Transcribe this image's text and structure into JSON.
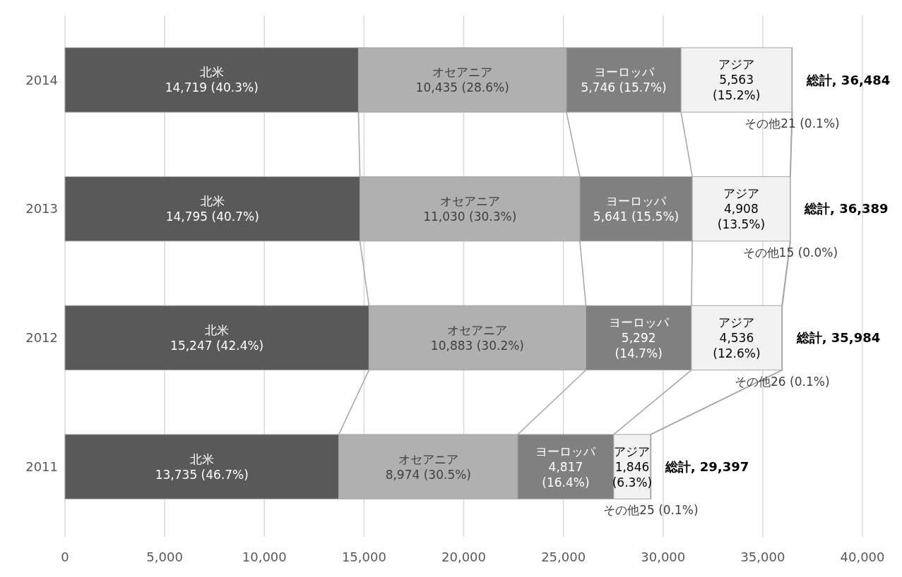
{
  "chart_data": {
    "type": "bar",
    "orientation": "horizontal",
    "stacked": true,
    "categories": [
      "2014",
      "2013",
      "2012",
      "2011"
    ],
    "series": [
      {
        "name": "北米",
        "color": "#595959",
        "values": [
          14719,
          14795,
          15247,
          13735
        ],
        "value_labels": [
          "14,719 (40.3%)",
          "14,795 (40.7%)",
          "15,247 (42.4%)",
          "13,735 (46.7%)"
        ]
      },
      {
        "name": "オセアニア",
        "color": "#b0b0b0",
        "values": [
          10435,
          11030,
          10883,
          8974
        ],
        "value_labels": [
          "10,435 (28.6%)",
          "11,030 (30.3%)",
          "10,883 (30.2%)",
          "8,974 (30.5%)"
        ]
      },
      {
        "name": "ヨーロッパ",
        "color": "#808080",
        "values": [
          5746,
          5641,
          5292,
          4817
        ],
        "value_labels": [
          "5,746 (15.7%)",
          "5,641 (15.5%)",
          "5,292 (14.7%)",
          "4,817 (16.4%)"
        ]
      },
      {
        "name": "アジア",
        "color": "#f2f2f2",
        "values": [
          5563,
          4908,
          4536,
          1846
        ],
        "value_labels": [
          "5,563 (15.2%)",
          "4,908 (13.5%)",
          "4,536 (12.6%)",
          "1,846 (6.3%)"
        ]
      },
      {
        "name": "その他",
        "color": "#ffffff",
        "values": [
          21,
          15,
          26,
          25
        ],
        "value_labels": [
          "21 (0.1%)",
          "15 (0.0%)",
          "26 (0.1%)",
          "25 (0.1%)"
        ]
      }
    ],
    "totals": [
      "総計, 36,484",
      "総計, 36,389",
      "総計, 35,984",
      "総計, 29,397"
    ],
    "xlim": [
      0,
      40000
    ],
    "xticks": [
      {
        "value": 0,
        "label": "0"
      },
      {
        "value": 5000,
        "label": "5,000"
      },
      {
        "value": 10000,
        "label": "10,000"
      },
      {
        "value": 15000,
        "label": "15,000"
      },
      {
        "value": 20000,
        "label": "20,000"
      },
      {
        "value": 25000,
        "label": "25,000"
      },
      {
        "value": 30000,
        "label": "30,000"
      },
      {
        "value": 35000,
        "label": "35,000"
      },
      {
        "value": 40000,
        "label": "40,000"
      }
    ],
    "grid": "x"
  }
}
